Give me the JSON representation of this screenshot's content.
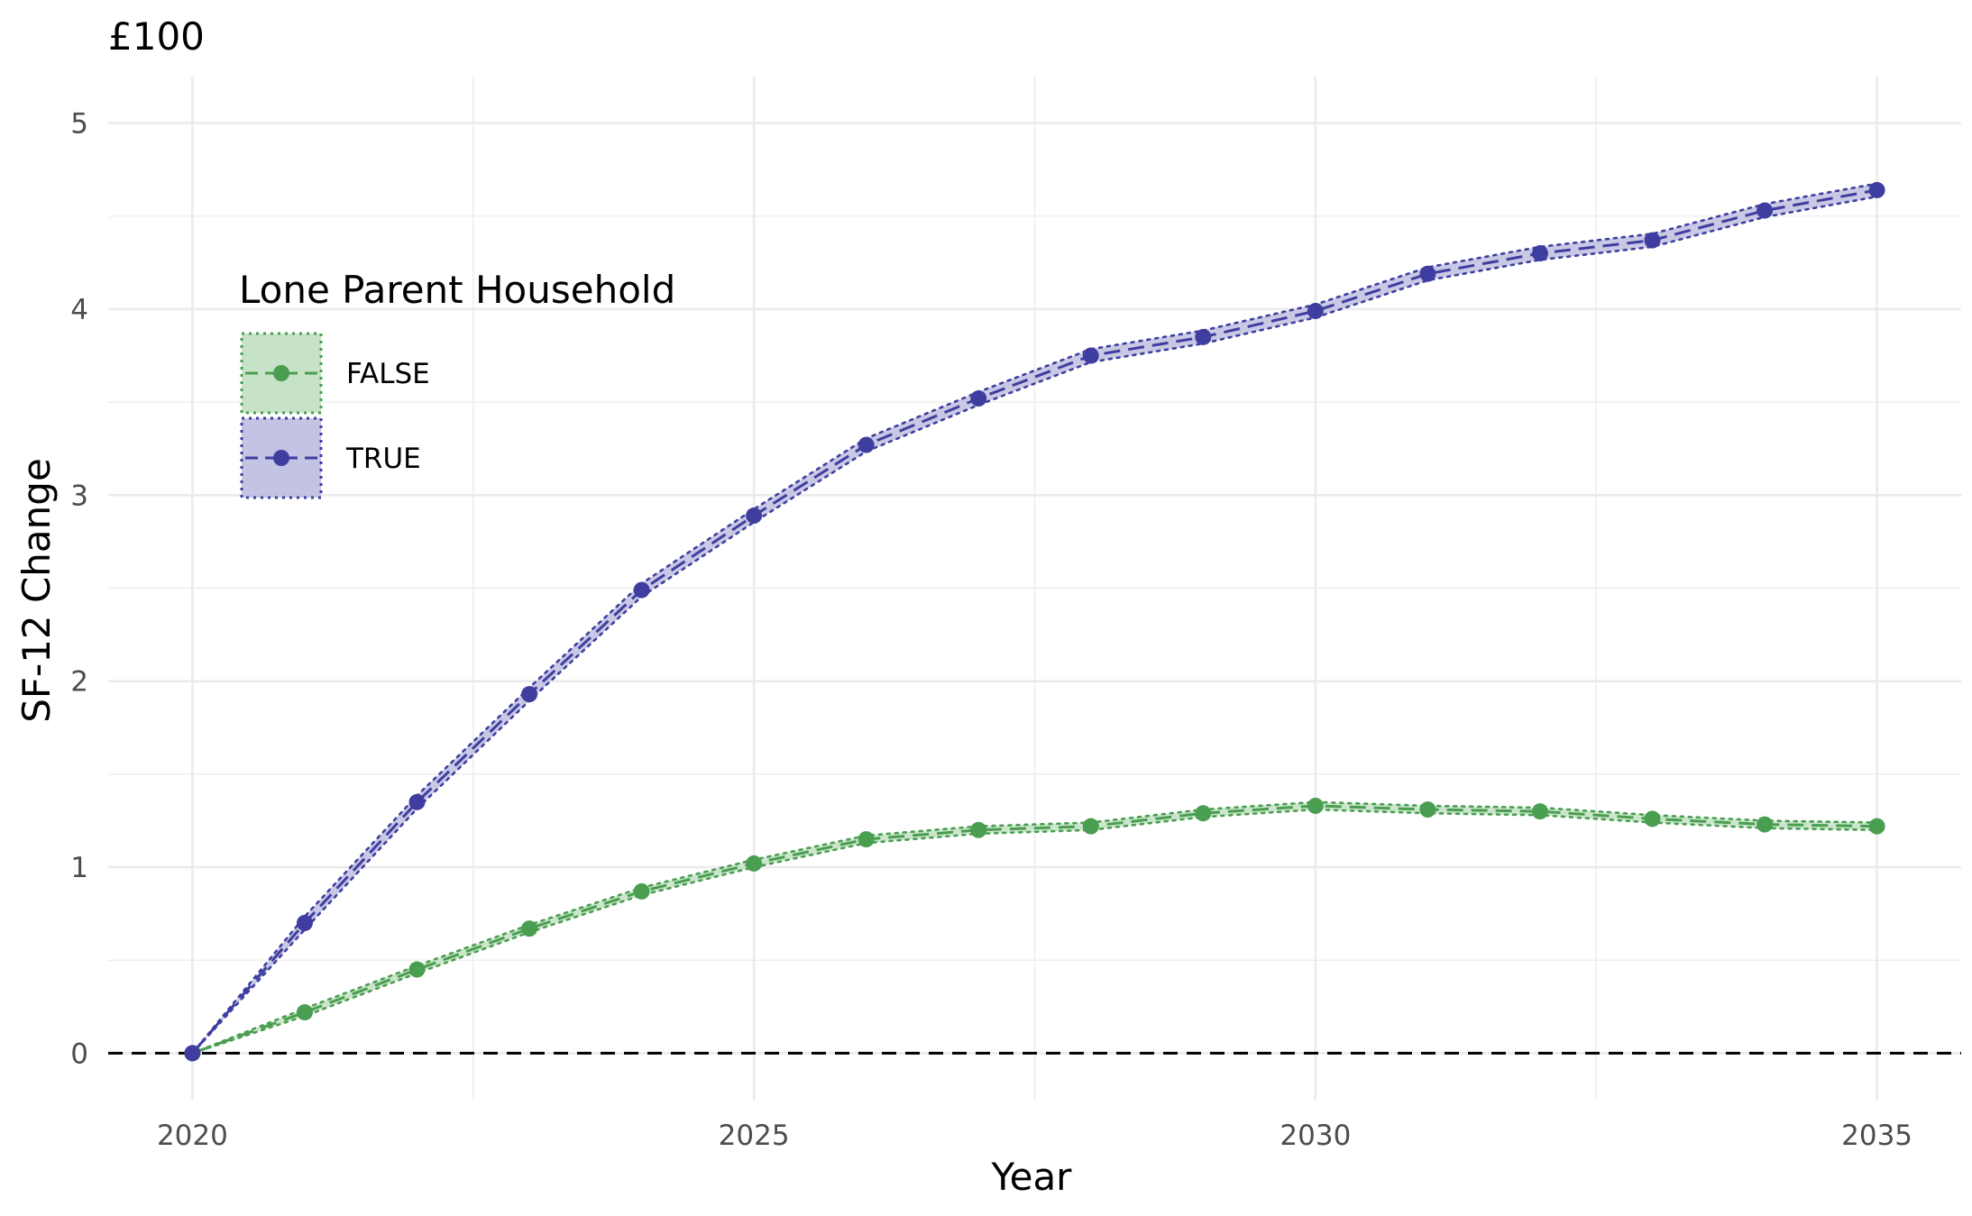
{
  "chart_data": {
    "type": "line",
    "title": "£100",
    "xlabel": "Year",
    "ylabel": "SF-12 Change",
    "xlim": [
      2019.25,
      2035.75
    ],
    "ylim": [
      -0.25,
      5.25
    ],
    "x_ticks": [
      2020,
      2025,
      2030,
      2035
    ],
    "y_ticks": [
      0,
      1,
      2,
      3,
      4,
      5
    ],
    "x_tick_labels": [
      "2020",
      "2025",
      "2030",
      "2035"
    ],
    "y_tick_labels": [
      "0",
      "1",
      "2",
      "3",
      "4",
      "5"
    ],
    "grid": true,
    "reference_line": {
      "y": 0,
      "style": "dashed",
      "color": "#000000"
    },
    "legend": {
      "title": "Lone Parent Household",
      "placement": "top-left inside"
    },
    "x": [
      2020,
      2021,
      2022,
      2023,
      2024,
      2025,
      2026,
      2027,
      2028,
      2029,
      2030,
      2031,
      2032,
      2033,
      2034,
      2035
    ],
    "series": [
      {
        "name": "FALSE",
        "color": "#4a9e50",
        "fill": "#c6e3c8",
        "values": [
          0,
          0.22,
          0.45,
          0.67,
          0.87,
          1.02,
          1.15,
          1.2,
          1.22,
          1.29,
          1.33,
          1.31,
          1.3,
          1.26,
          1.23,
          1.22
        ],
        "band_halfwidth": 0.02
      },
      {
        "name": "TRUE",
        "color": "#3f3ea0",
        "fill": "#c3c3e3",
        "values": [
          0,
          0.7,
          1.35,
          1.93,
          2.49,
          2.89,
          3.27,
          3.52,
          3.75,
          3.85,
          3.99,
          4.19,
          4.3,
          4.37,
          4.53,
          4.64
        ],
        "band_halfwidth": 0.035
      }
    ]
  }
}
